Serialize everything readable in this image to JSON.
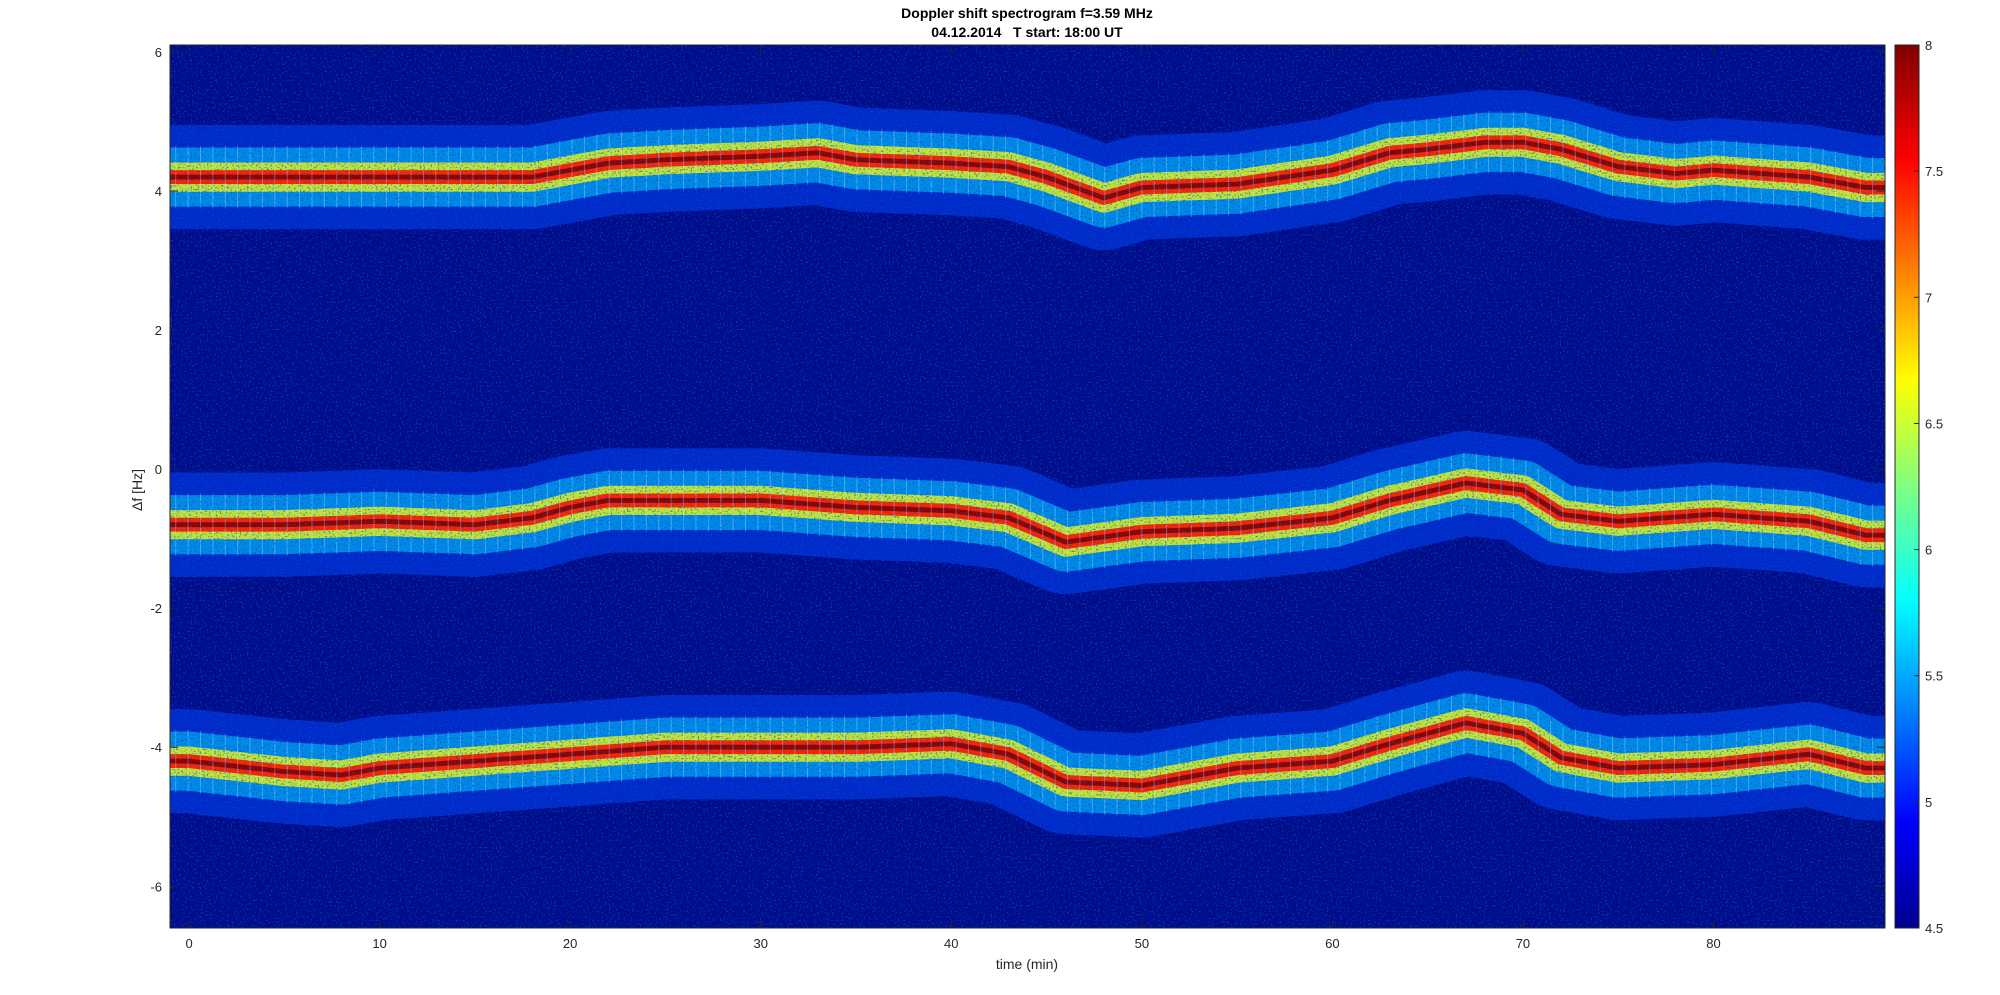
{
  "chart_data": {
    "type": "heatmap",
    "title": "Doppler shift spectrogram f=3.59 MHz",
    "subtitle": "04.12.2014   T start: 18:00 UT",
    "xlabel": "time (min)",
    "ylabel": "Δf [Hz]",
    "xlim": [
      -1,
      89
    ],
    "ylim": [
      -6.6,
      6.1
    ],
    "xticks": [
      0,
      10,
      20,
      30,
      40,
      50,
      60,
      70,
      80
    ],
    "yticks": [
      -6,
      -4,
      -2,
      0,
      2,
      4,
      6
    ],
    "colorbar": {
      "min": 4.5,
      "max": 8,
      "ticks": [
        4.5,
        5,
        5.5,
        6,
        6.5,
        7,
        7.5,
        8
      ],
      "colormap": "jet"
    },
    "traces": [
      {
        "name": "",
        "points": [
          [
            0,
            4.2
          ],
          [
            5,
            4.2
          ],
          [
            10,
            4.2
          ],
          [
            15,
            4.2
          ],
          [
            18,
            4.2
          ],
          [
            20,
            4.3
          ],
          [
            22,
            4.4
          ],
          [
            25,
            4.45
          ],
          [
            30,
            4.5
          ],
          [
            33,
            4.55
          ],
          [
            35,
            4.45
          ],
          [
            40,
            4.4
          ],
          [
            43,
            4.35
          ],
          [
            45,
            4.2
          ],
          [
            48,
            3.9
          ],
          [
            50,
            4.05
          ],
          [
            55,
            4.1
          ],
          [
            60,
            4.3
          ],
          [
            63,
            4.55
          ],
          [
            65,
            4.6
          ],
          [
            68,
            4.7
          ],
          [
            70,
            4.7
          ],
          [
            72,
            4.6
          ],
          [
            75,
            4.35
          ],
          [
            78,
            4.25
          ],
          [
            80,
            4.3
          ],
          [
            85,
            4.2
          ],
          [
            88,
            4.05
          ]
        ]
      },
      {
        "name": "",
        "points": [
          [
            0,
            -0.8
          ],
          [
            5,
            -0.8
          ],
          [
            10,
            -0.75
          ],
          [
            15,
            -0.8
          ],
          [
            18,
            -0.7
          ],
          [
            20,
            -0.55
          ],
          [
            22,
            -0.45
          ],
          [
            25,
            -0.45
          ],
          [
            30,
            -0.45
          ],
          [
            35,
            -0.55
          ],
          [
            40,
            -0.6
          ],
          [
            43,
            -0.7
          ],
          [
            46,
            -1.05
          ],
          [
            50,
            -0.9
          ],
          [
            55,
            -0.85
          ],
          [
            60,
            -0.7
          ],
          [
            63,
            -0.45
          ],
          [
            67,
            -0.2
          ],
          [
            70,
            -0.3
          ],
          [
            72,
            -0.65
          ],
          [
            75,
            -0.75
          ],
          [
            80,
            -0.65
          ],
          [
            85,
            -0.75
          ],
          [
            88,
            -0.95
          ]
        ]
      },
      {
        "name": "",
        "points": [
          [
            0,
            -4.2
          ],
          [
            5,
            -4.35
          ],
          [
            8,
            -4.4
          ],
          [
            10,
            -4.3
          ],
          [
            15,
            -4.2
          ],
          [
            20,
            -4.1
          ],
          [
            25,
            -4.0
          ],
          [
            30,
            -4.0
          ],
          [
            35,
            -4.0
          ],
          [
            40,
            -3.95
          ],
          [
            43,
            -4.1
          ],
          [
            46,
            -4.5
          ],
          [
            50,
            -4.55
          ],
          [
            55,
            -4.3
          ],
          [
            60,
            -4.2
          ],
          [
            63,
            -3.95
          ],
          [
            67,
            -3.65
          ],
          [
            70,
            -3.8
          ],
          [
            72,
            -4.15
          ],
          [
            75,
            -4.3
          ],
          [
            80,
            -4.25
          ],
          [
            85,
            -4.1
          ],
          [
            88,
            -4.3
          ]
        ]
      }
    ],
    "colors": {
      "background": "#000c8a",
      "weak": "#0044ff",
      "medium": "#00d9ff",
      "strong": "#ffff00",
      "peak": "#ff1a00",
      "core": "#800000"
    }
  }
}
